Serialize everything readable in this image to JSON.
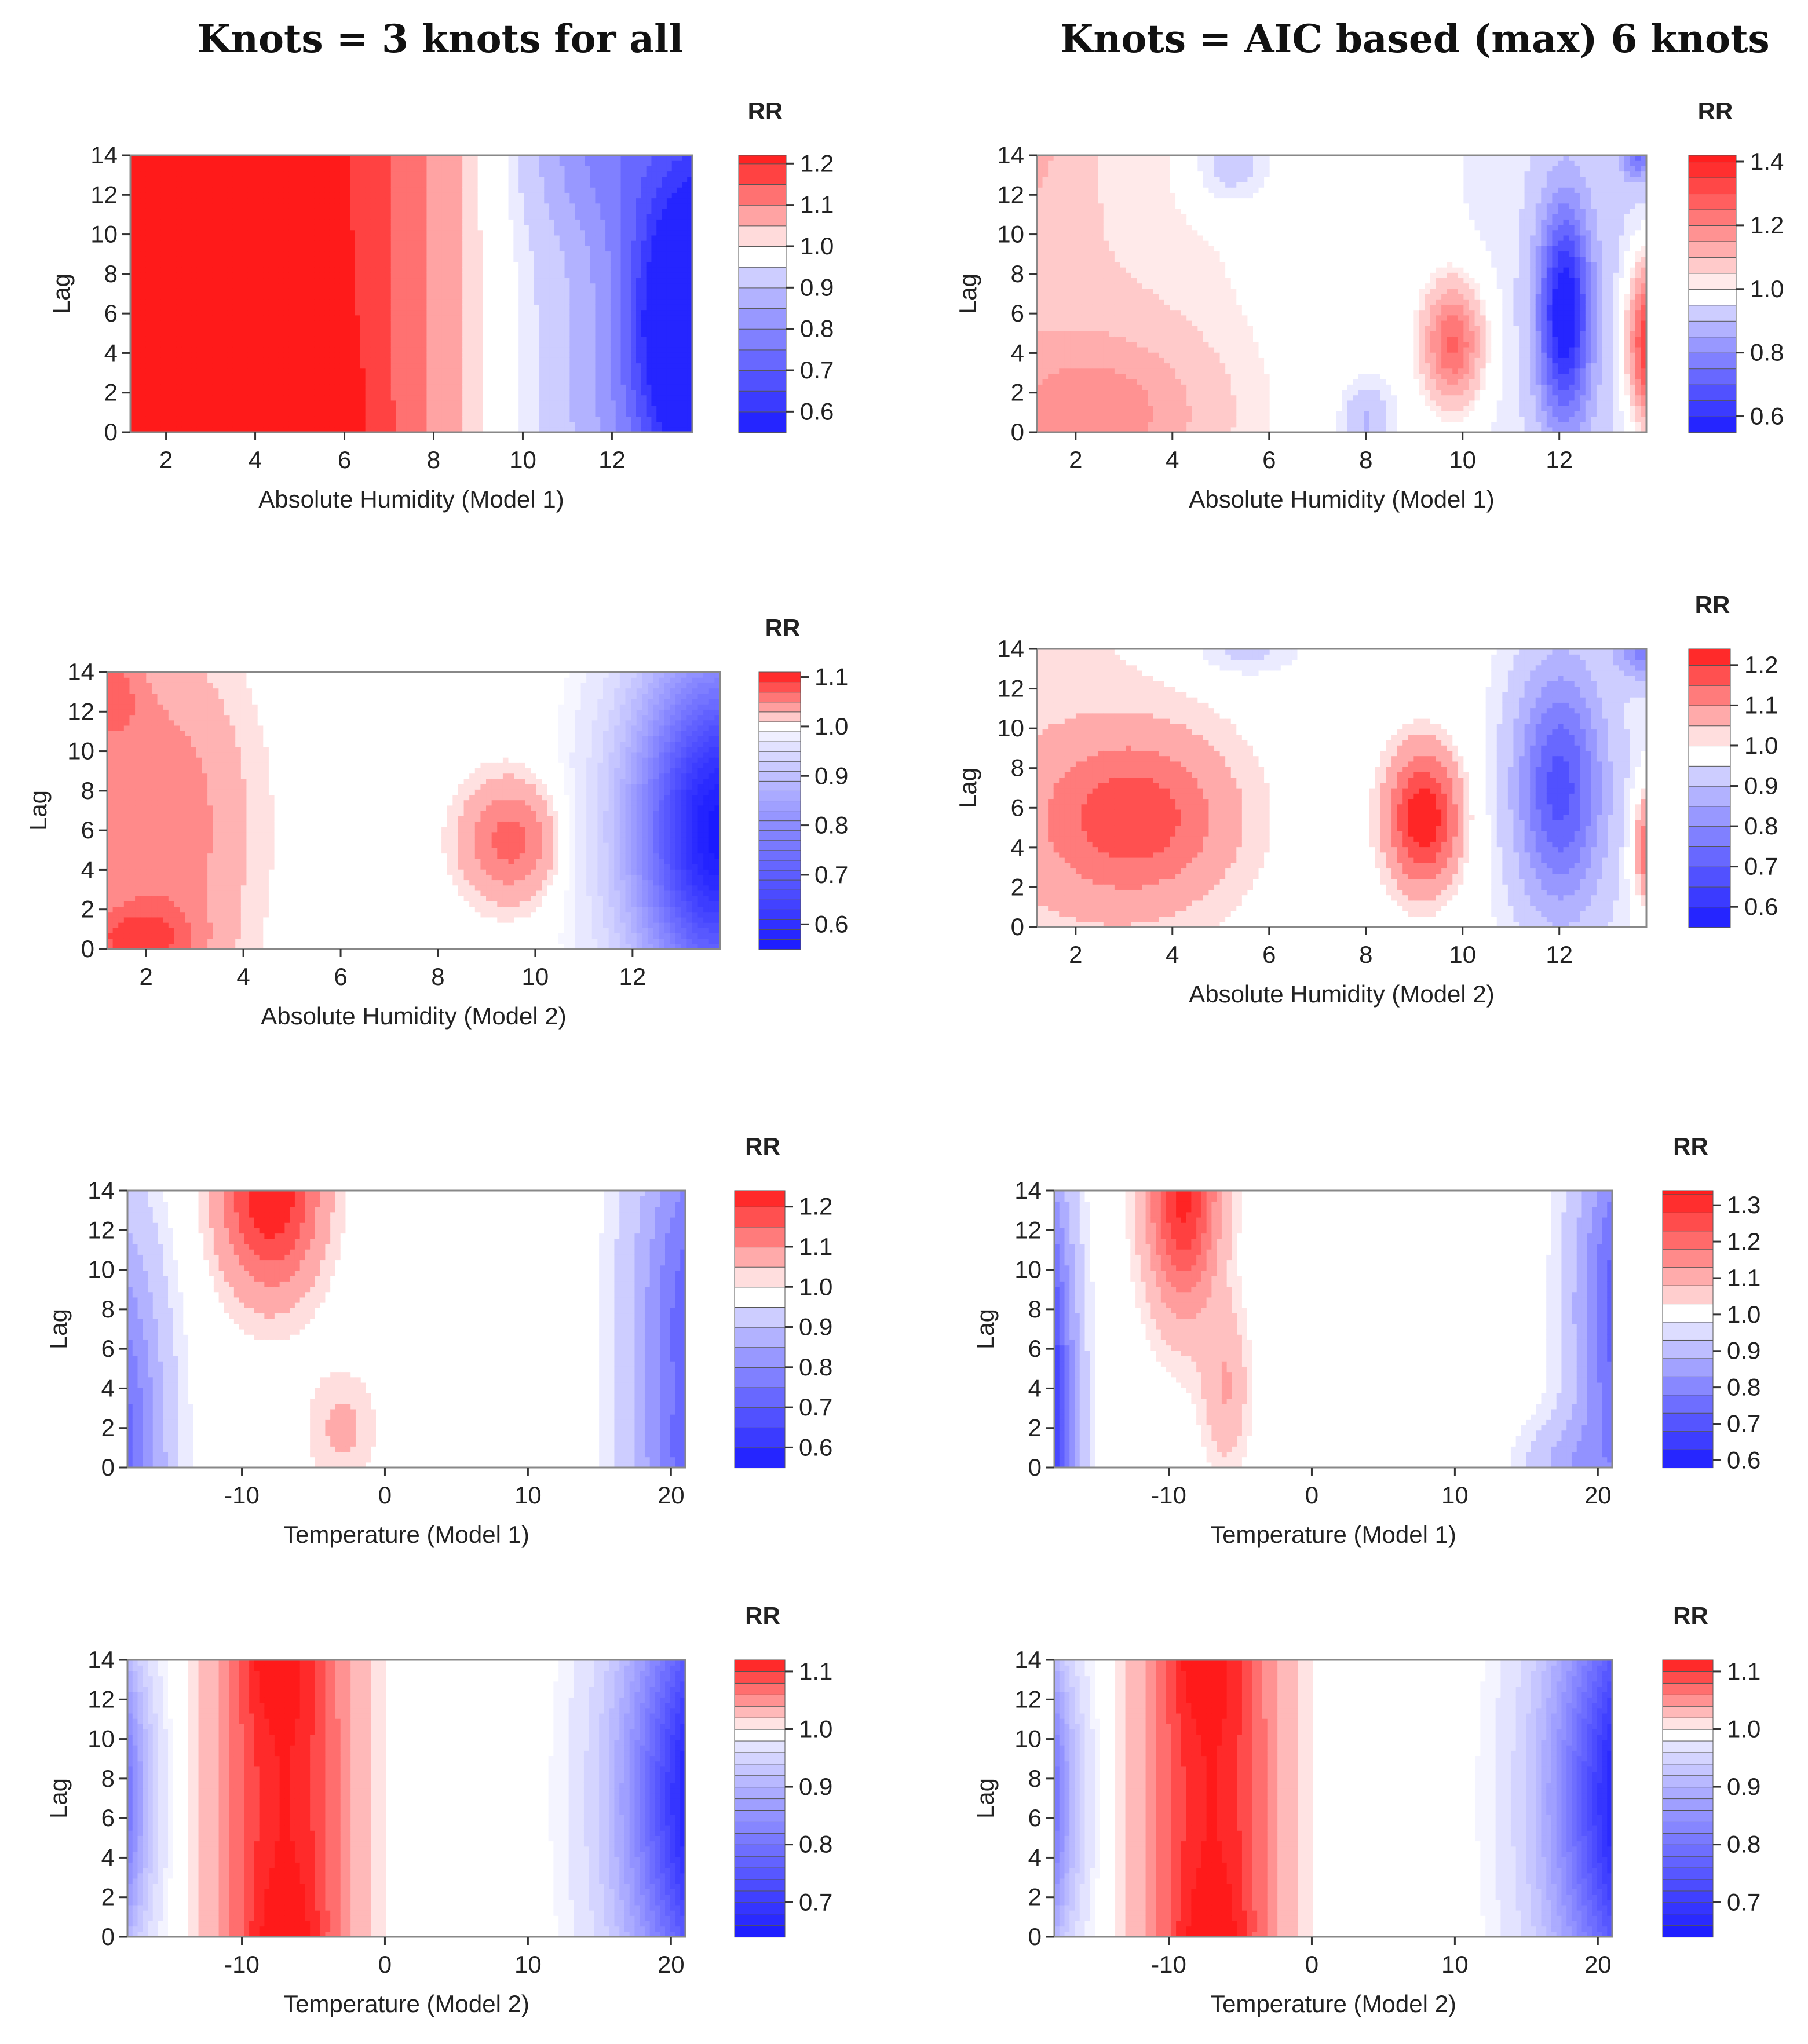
{
  "titles": {
    "left": "Knots = 3 knots for all",
    "right": "Knots = AIC based (max) 6 knots"
  },
  "colors": {
    "red": "#ff1a1a",
    "white": "#ffffff",
    "blue": "#1a1aff",
    "border": "#888888"
  },
  "chart_data": [
    {
      "type": "heatmap",
      "name": "panel-ah-model1-3knots",
      "xlabel": "Absolute Humidity (Model 1)",
      "ylabel": "Lag",
      "xlim": [
        1.2,
        13.8
      ],
      "ylim": [
        0,
        14
      ],
      "xticks": [
        2,
        4,
        6,
        8,
        10,
        12
      ],
      "yticks": [
        0,
        2,
        4,
        6,
        8,
        10,
        12,
        14
      ],
      "legend": {
        "title": "RR",
        "min": 0.55,
        "max": 1.22,
        "step": 0.05,
        "ticks": [
          0.6,
          0.7,
          0.8,
          0.9,
          1.0,
          1.1,
          1.2
        ],
        "tick_labels": [
          "0.6",
          "0.7",
          "0.8",
          "0.9",
          "1.0",
          "1.1",
          "1.2"
        ]
      },
      "surface": {
        "bumps": [
          {
            "x": 3.4,
            "lag": 0,
            "sx": 2.0,
            "sl": 5.5,
            "amp": 0.2
          },
          {
            "x": 1.0,
            "lag": 14,
            "sx": 1.2,
            "sl": 6,
            "amp": 0.12
          },
          {
            "x": 13.8,
            "lag": 5.5,
            "sx": 1.3,
            "sl": 7,
            "amp": -0.42
          },
          {
            "x": 11.5,
            "lag": 14,
            "sx": 1.5,
            "sl": 4,
            "amp": -0.08
          },
          {
            "x": 4.2,
            "lag": 14,
            "sx": 0.6,
            "sl": 0.8,
            "amp": -0.04
          }
        ],
        "gradient": {
          "x0": 9.5,
          "slope": -0.06
        }
      }
    },
    {
      "type": "heatmap",
      "name": "panel-ah-model1-aic",
      "xlabel": "Absolute Humidity (Model 1)",
      "ylabel": "Lag",
      "xlim": [
        1.2,
        13.8
      ],
      "ylim": [
        0,
        14
      ],
      "xticks": [
        2,
        4,
        6,
        8,
        10,
        12
      ],
      "yticks": [
        0,
        2,
        4,
        6,
        8,
        10,
        12,
        14
      ],
      "legend": {
        "title": "RR",
        "min": 0.55,
        "max": 1.42,
        "step": 0.05,
        "ticks": [
          0.6,
          0.8,
          1.0,
          1.2,
          1.4
        ],
        "tick_labels": [
          "0.6",
          "0.8",
          "1.0",
          "1.2",
          "1.4"
        ]
      },
      "surface": {
        "bumps": [
          {
            "x": 2.5,
            "lag": 1,
            "sx": 2.2,
            "sl": 4,
            "amp": 0.14
          },
          {
            "x": 1.0,
            "lag": 14,
            "sx": 0.6,
            "sl": 2,
            "amp": 0.08
          },
          {
            "x": 9.8,
            "lag": 4.5,
            "sx": 0.6,
            "sl": 3,
            "amp": 0.28
          },
          {
            "x": 12.1,
            "lag": 6,
            "sx": 0.55,
            "sl": 5.5,
            "amp": -0.42
          },
          {
            "x": 13.9,
            "lag": 4.5,
            "sx": 0.45,
            "sl": 4,
            "amp": 0.45
          },
          {
            "x": 5.2,
            "lag": 13.5,
            "sx": 0.9,
            "sl": 2.2,
            "amp": -0.09
          },
          {
            "x": 8.0,
            "lag": 0.5,
            "sx": 0.5,
            "sl": 2,
            "amp": -0.1
          },
          {
            "x": 13.6,
            "lag": 14,
            "sx": 0.3,
            "sl": 1.2,
            "amp": -0.2
          }
        ],
        "gradient": {
          "x0": 7.5,
          "slope": -0.01
        }
      }
    },
    {
      "type": "heatmap",
      "name": "panel-ah-model2-3knots",
      "xlabel": "Absolute Humidity (Model 2)",
      "ylabel": "Lag",
      "xlim": [
        1.2,
        13.8
      ],
      "ylim": [
        0,
        14
      ],
      "xticks": [
        2,
        4,
        6,
        8,
        10,
        12
      ],
      "yticks": [
        0,
        2,
        4,
        6,
        8,
        10,
        12,
        14
      ],
      "legend": {
        "title": "RR",
        "min": 0.55,
        "max": 1.11,
        "step": 0.02,
        "ticks": [
          0.6,
          0.7,
          0.8,
          0.9,
          1.0,
          1.1
        ],
        "tick_labels": [
          "0.6",
          "0.7",
          "0.8",
          "0.9",
          "1.0",
          "1.1"
        ]
      },
      "surface": {
        "bumps": [
          {
            "x": 2.2,
            "lag": 6,
            "sx": 1.8,
            "sl": 9,
            "amp": 0.06
          },
          {
            "x": 1.2,
            "lag": 13,
            "sx": 0.7,
            "sl": 2.5,
            "amp": 0.05
          },
          {
            "x": 1.8,
            "lag": 0.5,
            "sx": 1.2,
            "sl": 1.6,
            "amp": 0.06
          },
          {
            "x": 9.5,
            "lag": 5.5,
            "sx": 1.0,
            "sl": 3,
            "amp": 0.07
          },
          {
            "x": 13.8,
            "lag": 6,
            "sx": 1.8,
            "sl": 9,
            "amp": -0.45
          }
        ],
        "gradient": {
          "x0": 10,
          "slope": 0
        }
      }
    },
    {
      "type": "heatmap",
      "name": "panel-ah-model2-aic",
      "xlabel": "Absolute Humidity (Model 2)",
      "ylabel": "Lag",
      "xlim": [
        1.2,
        13.8
      ],
      "ylim": [
        0,
        14
      ],
      "xticks": [
        2,
        4,
        6,
        8,
        10,
        12
      ],
      "yticks": [
        0,
        2,
        4,
        6,
        8,
        10,
        12,
        14
      ],
      "legend": {
        "title": "RR",
        "min": 0.55,
        "max": 1.24,
        "step": 0.05,
        "ticks": [
          0.6,
          0.7,
          0.8,
          0.9,
          1.0,
          1.1,
          1.2
        ],
        "tick_labels": [
          "0.6",
          "0.7",
          "0.8",
          "0.9",
          "1.0",
          "1.1",
          "1.2"
        ]
      },
      "surface": {
        "bumps": [
          {
            "x": 3.2,
            "lag": 5.5,
            "sx": 1.9,
            "sl": 4,
            "amp": 0.17
          },
          {
            "x": 9.2,
            "lag": 5.5,
            "sx": 0.75,
            "sl": 3.5,
            "amp": 0.25
          },
          {
            "x": 12.0,
            "lag": 7,
            "sx": 0.9,
            "sl": 6,
            "amp": -0.3
          },
          {
            "x": 13.9,
            "lag": 4,
            "sx": 0.35,
            "sl": 3,
            "amp": 0.2
          },
          {
            "x": 13.8,
            "lag": 14,
            "sx": 0.6,
            "sl": 1.5,
            "amp": -0.2
          },
          {
            "x": 5.5,
            "lag": 14,
            "sx": 1.2,
            "sl": 1.5,
            "amp": -0.07
          }
        ],
        "gradient": {
          "x0": 7.5,
          "slope": -0.005
        }
      }
    },
    {
      "type": "heatmap",
      "name": "panel-temp-model1-3knots",
      "xlabel": "Temperature (Model 1)",
      "ylabel": "Lag",
      "xlim": [
        -18,
        21
      ],
      "ylim": [
        0,
        14
      ],
      "xticks": [
        -10,
        0,
        10,
        20
      ],
      "yticks": [
        0,
        2,
        4,
        6,
        8,
        10,
        12,
        14
      ],
      "legend": {
        "title": "RR",
        "min": 0.55,
        "max": 1.24,
        "step": 0.05,
        "ticks": [
          0.6,
          0.7,
          0.8,
          0.9,
          1.0,
          1.1,
          1.2
        ],
        "tick_labels": [
          "0.6",
          "0.7",
          "0.8",
          "0.9",
          "1.0",
          "1.1",
          "1.2"
        ]
      },
      "surface": {
        "bumps": [
          {
            "x": -8,
            "lag": 14,
            "sx": 3.5,
            "sl": 5,
            "amp": 0.25
          },
          {
            "x": -3,
            "lag": 2,
            "sx": 2.5,
            "sl": 3,
            "amp": 0.06
          },
          {
            "x": -19,
            "lag": 0,
            "sx": 3.5,
            "sl": 12,
            "amp": -0.3
          },
          {
            "x": 22,
            "lag": 7,
            "sx": 4.5,
            "sl": 12,
            "amp": -0.3
          },
          {
            "x": 22,
            "lag": 0,
            "sx": 4,
            "sl": 3,
            "amp": -0.08
          }
        ],
        "gradient": {
          "x0": 0,
          "slope": 0
        }
      }
    },
    {
      "type": "heatmap",
      "name": "panel-temp-model1-aic",
      "xlabel": "Temperature (Model 1)",
      "ylabel": "Lag",
      "xlim": [
        -18,
        21
      ],
      "ylim": [
        0,
        14
      ],
      "xticks": [
        -10,
        0,
        10,
        20
      ],
      "yticks": [
        0,
        2,
        4,
        6,
        8,
        10,
        12,
        14
      ],
      "legend": {
        "title": "RR",
        "min": 0.58,
        "max": 1.34,
        "step": 0.05,
        "ticks": [
          0.6,
          0.7,
          0.8,
          0.9,
          1.0,
          1.1,
          1.2,
          1.3
        ],
        "tick_labels": [
          "0.6",
          "0.7",
          "0.8",
          "0.9",
          "1.0",
          "1.1",
          "1.2",
          "1.3"
        ]
      },
      "surface": {
        "bumps": [
          {
            "x": -9,
            "lag": 14,
            "sx": 2.5,
            "sl": 6,
            "amp": 0.32
          },
          {
            "x": -6,
            "lag": 4,
            "sx": 1.6,
            "sl": 4,
            "amp": 0.1
          },
          {
            "x": -19,
            "lag": 3,
            "sx": 2.3,
            "sl": 12,
            "amp": -0.42
          },
          {
            "x": 22,
            "lag": 8,
            "sx": 3.5,
            "sl": 10,
            "amp": -0.3
          },
          {
            "x": 18,
            "lag": 0,
            "sx": 3.5,
            "sl": 2.5,
            "amp": -0.1
          }
        ],
        "gradient": {
          "x0": 0,
          "slope": 0
        }
      }
    },
    {
      "type": "heatmap",
      "name": "panel-temp-model2-3knots",
      "xlabel": "Temperature (Model 2)",
      "ylabel": "Lag",
      "xlim": [
        -18,
        21
      ],
      "ylim": [
        0,
        14
      ],
      "xticks": [
        -10,
        0,
        10,
        20
      ],
      "yticks": [
        0,
        2,
        4,
        6,
        8,
        10,
        12,
        14
      ],
      "legend": {
        "title": "RR",
        "min": 0.64,
        "max": 1.12,
        "step": 0.02,
        "ticks": [
          0.7,
          0.8,
          0.9,
          1.0,
          1.1
        ],
        "tick_labels": [
          "0.7",
          "0.8",
          "0.9",
          "1.0",
          "1.1"
        ]
      },
      "surface": {
        "bumps": [
          {
            "x": -7,
            "lag": 7,
            "sx": 4.5,
            "sl": 30,
            "amp": 0.12
          },
          {
            "x": -8,
            "lag": 14,
            "sx": 2.5,
            "sl": 3,
            "amp": 0.03
          },
          {
            "x": -7,
            "lag": 0,
            "sx": 2.5,
            "sl": 3,
            "amp": 0.03
          },
          {
            "x": -20,
            "lag": 7,
            "sx": 3.0,
            "sl": 8,
            "amp": -0.32
          },
          {
            "x": 23,
            "lag": 7,
            "sx": 6,
            "sl": 12,
            "amp": -0.38
          }
        ],
        "gradient": {
          "x0": 0,
          "slope": 0
        }
      }
    },
    {
      "type": "heatmap",
      "name": "panel-temp-model2-aic",
      "xlabel": "Temperature (Model 2)",
      "ylabel": "Lag",
      "xlim": [
        -18,
        21
      ],
      "ylim": [
        0,
        14
      ],
      "xticks": [
        -10,
        0,
        10,
        20
      ],
      "yticks": [
        0,
        2,
        4,
        6,
        8,
        10,
        12,
        14
      ],
      "legend": {
        "title": "RR",
        "min": 0.64,
        "max": 1.12,
        "step": 0.02,
        "ticks": [
          0.7,
          0.8,
          0.9,
          1.0,
          1.1
        ],
        "tick_labels": [
          "0.7",
          "0.8",
          "0.9",
          "1.0",
          "1.1"
        ]
      },
      "surface": {
        "bumps": [
          {
            "x": -7,
            "lag": 7,
            "sx": 4.5,
            "sl": 30,
            "amp": 0.12
          },
          {
            "x": -8,
            "lag": 14,
            "sx": 2.5,
            "sl": 3,
            "amp": 0.03
          },
          {
            "x": -7,
            "lag": 0,
            "sx": 2.5,
            "sl": 3,
            "amp": 0.03
          },
          {
            "x": -20,
            "lag": 7,
            "sx": 3.0,
            "sl": 8,
            "amp": -0.32
          },
          {
            "x": 23,
            "lag": 7,
            "sx": 6,
            "sl": 12,
            "amp": -0.38
          }
        ],
        "gradient": {
          "x0": 0,
          "slope": 0
        }
      }
    }
  ]
}
